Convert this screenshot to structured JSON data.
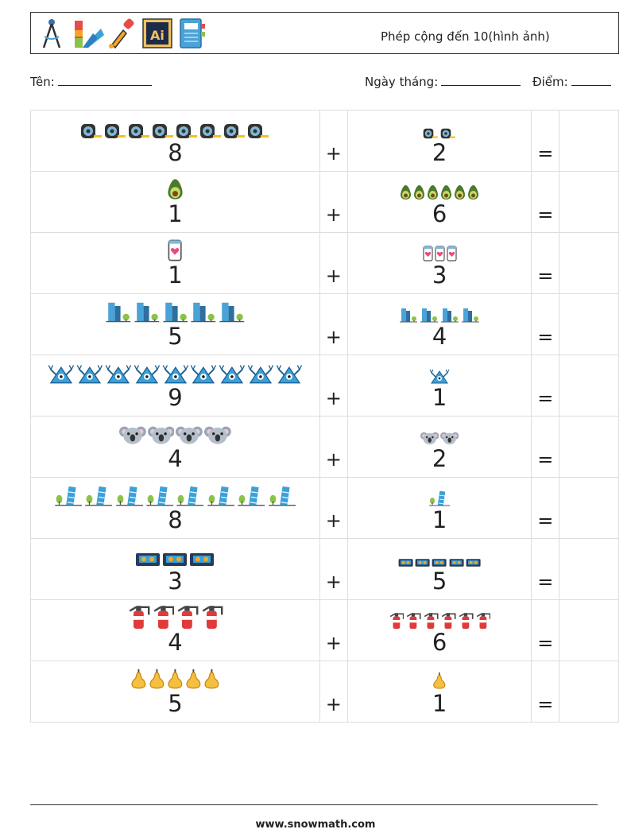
{
  "header": {
    "title": "Phép cộng đến 10(hình ảnh)",
    "icons": [
      "compass-icon",
      "color-swatch-icon",
      "eyedropper-icon",
      "illustrator-icon",
      "notebook-icon"
    ]
  },
  "fields": {
    "name_label": "Tên:",
    "date_label": "Ngày tháng:",
    "score_label": "Điểm:"
  },
  "operators": {
    "plus": "+",
    "equals": "="
  },
  "rows": [
    {
      "a": "8",
      "a_icon": "tape-measure-icon",
      "b": "2",
      "b_icon": "tape-measure-icon"
    },
    {
      "a": "1",
      "a_icon": "avocado-icon",
      "b": "6",
      "b_icon": "avocado-icon"
    },
    {
      "a": "1",
      "a_icon": "smartphone-heart-icon",
      "b": "3",
      "b_icon": "smartphone-heart-icon"
    },
    {
      "a": "5",
      "a_icon": "skyscraper-icon",
      "b": "4",
      "b_icon": "skyscraper-icon"
    },
    {
      "a": "9",
      "a_icon": "triangle-monster-icon",
      "b": "1",
      "b_icon": "triangle-monster-icon"
    },
    {
      "a": "4",
      "a_icon": "koala-icon",
      "b": "2",
      "b_icon": "koala-icon"
    },
    {
      "a": "8",
      "a_icon": "leaning-tower-icon",
      "b": "1",
      "b_icon": "leaning-tower-icon"
    },
    {
      "a": "3",
      "a_icon": "cassette-tape-icon",
      "b": "5",
      "b_icon": "cassette-tape-icon"
    },
    {
      "a": "4",
      "a_icon": "fire-extinguisher-icon",
      "b": "6",
      "b_icon": "fire-extinguisher-icon"
    },
    {
      "a": "5",
      "a_icon": "pear-icon",
      "b": "1",
      "b_icon": "pear-icon"
    }
  ],
  "footer": {
    "url": "www.snowmath.com"
  }
}
